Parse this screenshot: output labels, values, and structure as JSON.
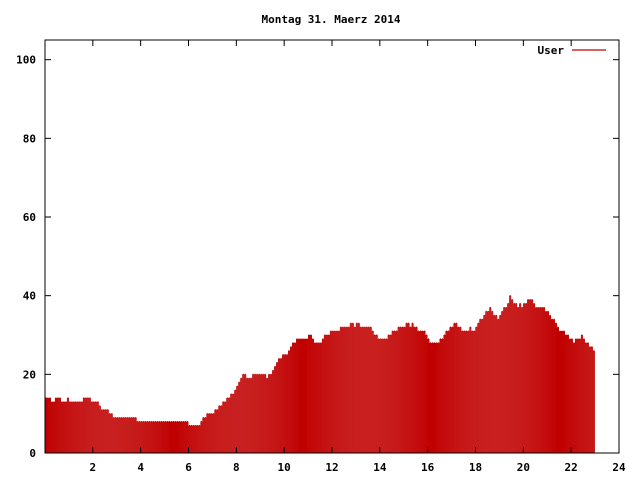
{
  "chart_data": {
    "type": "bar",
    "title": "Montag 31. Maerz 2014",
    "xlabel": "",
    "ylabel": "",
    "xlim": [
      0,
      24
    ],
    "ylim": [
      0,
      105
    ],
    "xticks": [
      2,
      4,
      6,
      8,
      10,
      12,
      14,
      16,
      18,
      20,
      22,
      24
    ],
    "yticks": [
      0,
      20,
      40,
      60,
      80,
      100
    ],
    "grid": false,
    "legend": "top-right",
    "series": [
      {
        "name": "User",
        "color": "#c00000",
        "bar_width_hours": 0.0833,
        "x_start_hour": 0.0417,
        "values": [
          14,
          14,
          14,
          13,
          13,
          14,
          14,
          14,
          13,
          13,
          13,
          14,
          13,
          13,
          13,
          13,
          13,
          13,
          13,
          14,
          14,
          14,
          14,
          13,
          13,
          13,
          13,
          12,
          11,
          11,
          11,
          11,
          10,
          10,
          9,
          9,
          9,
          9,
          9,
          9,
          9,
          9,
          9,
          9,
          9,
          9,
          8,
          8,
          8,
          8,
          8,
          8,
          8,
          8,
          8,
          8,
          8,
          8,
          8,
          8,
          8,
          8,
          8,
          8,
          8,
          8,
          8,
          8,
          8,
          8,
          8,
          8,
          7,
          7,
          7,
          7,
          7,
          7,
          8,
          9,
          9,
          10,
          10,
          10,
          10,
          11,
          11,
          12,
          12,
          13,
          13,
          14,
          14,
          15,
          15,
          16,
          17,
          18,
          19,
          20,
          20,
          19,
          19,
          19,
          20,
          20,
          20,
          20,
          20,
          20,
          20,
          19,
          20,
          20,
          21,
          22,
          23,
          24,
          24,
          25,
          25,
          25,
          26,
          27,
          28,
          28,
          29,
          29,
          29,
          29,
          29,
          29,
          30,
          30,
          29,
          28,
          28,
          28,
          28,
          29,
          30,
          30,
          30,
          31,
          31,
          31,
          31,
          31,
          32,
          32,
          32,
          32,
          32,
          33,
          33,
          32,
          33,
          33,
          32,
          32,
          32,
          32,
          32,
          32,
          31,
          30,
          30,
          29,
          29,
          29,
          29,
          29,
          30,
          30,
          31,
          31,
          31,
          32,
          32,
          32,
          32,
          33,
          33,
          32,
          33,
          32,
          32,
          31,
          31,
          31,
          31,
          30,
          29,
          28,
          28,
          28,
          28,
          28,
          29,
          29,
          30,
          31,
          31,
          32,
          32,
          33,
          33,
          32,
          32,
          31,
          31,
          31,
          31,
          32,
          31,
          31,
          32,
          33,
          34,
          34,
          35,
          36,
          36,
          37,
          36,
          35,
          35,
          34,
          35,
          36,
          37,
          37,
          38,
          40,
          39,
          38,
          38,
          37,
          38,
          37,
          38,
          38,
          39,
          39,
          39,
          38,
          37,
          37,
          37,
          37,
          37,
          36,
          36,
          35,
          34,
          34,
          33,
          32,
          31,
          31,
          31,
          30,
          30,
          29,
          29,
          28,
          29,
          29,
          29,
          30,
          29,
          28,
          28,
          27,
          27,
          26
        ]
      }
    ]
  }
}
